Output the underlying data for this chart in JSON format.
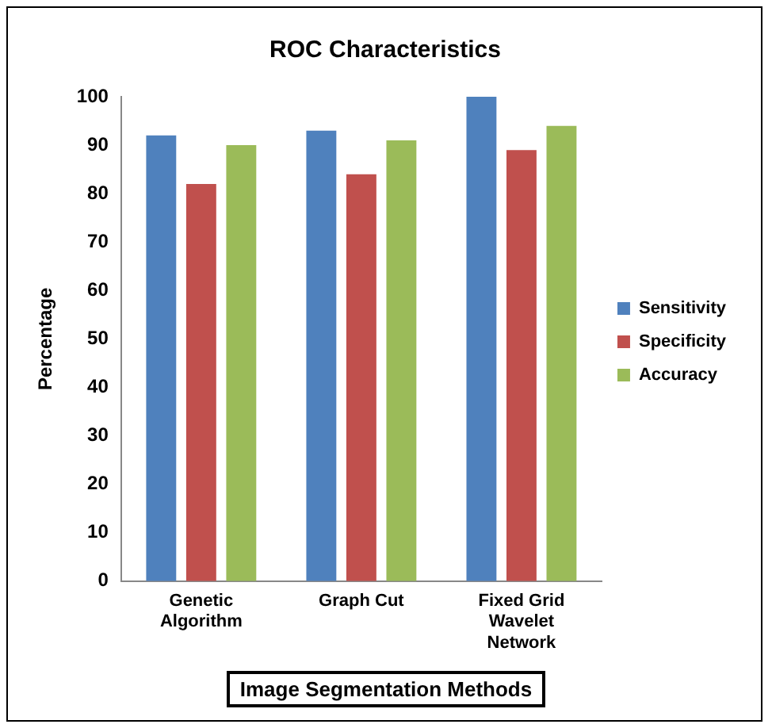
{
  "chart_data": {
    "type": "bar",
    "title": "ROC Characteristics",
    "xlabel": "Image Segmentation Methods",
    "ylabel": "Percentage",
    "categories": [
      "Genetic Algorithm",
      "Graph Cut",
      "Fixed Grid Wavelet Network"
    ],
    "series": [
      {
        "name": "Sensitivity",
        "color": "#4f81bd",
        "values": [
          92,
          93,
          100
        ]
      },
      {
        "name": "Specificity",
        "color": "#c0504d",
        "values": [
          82,
          84,
          89
        ]
      },
      {
        "name": "Accuracy",
        "color": "#9bbb59",
        "values": [
          90,
          91,
          94
        ]
      }
    ],
    "ylim": [
      0,
      100
    ],
    "yticks": [
      0,
      10,
      20,
      30,
      40,
      50,
      60,
      70,
      80,
      90,
      100
    ],
    "grid": false,
    "legend": "right"
  }
}
